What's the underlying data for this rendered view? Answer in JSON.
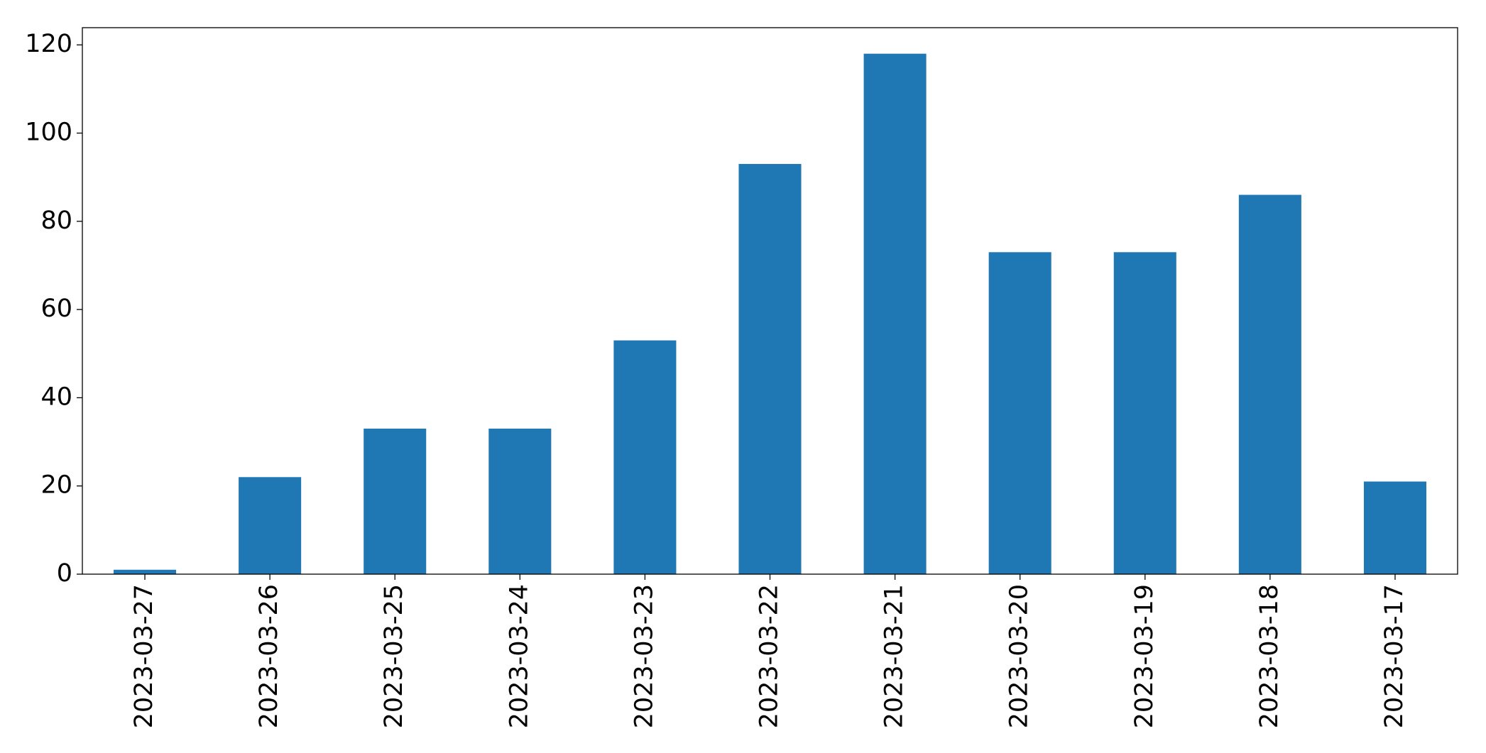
{
  "chart_data": {
    "type": "bar",
    "categories": [
      "2023-03-27",
      "2023-03-26",
      "2023-03-25",
      "2023-03-24",
      "2023-03-23",
      "2023-03-22",
      "2023-03-21",
      "2023-03-20",
      "2023-03-19",
      "2023-03-18",
      "2023-03-17"
    ],
    "values": [
      1,
      22,
      33,
      33,
      53,
      93,
      118,
      73,
      73,
      86,
      21
    ],
    "color": "#1f77b4",
    "ylim": [
      0,
      123.9
    ],
    "yticks": [
      0,
      20,
      40,
      60,
      80,
      100,
      120
    ],
    "grid": false
  }
}
